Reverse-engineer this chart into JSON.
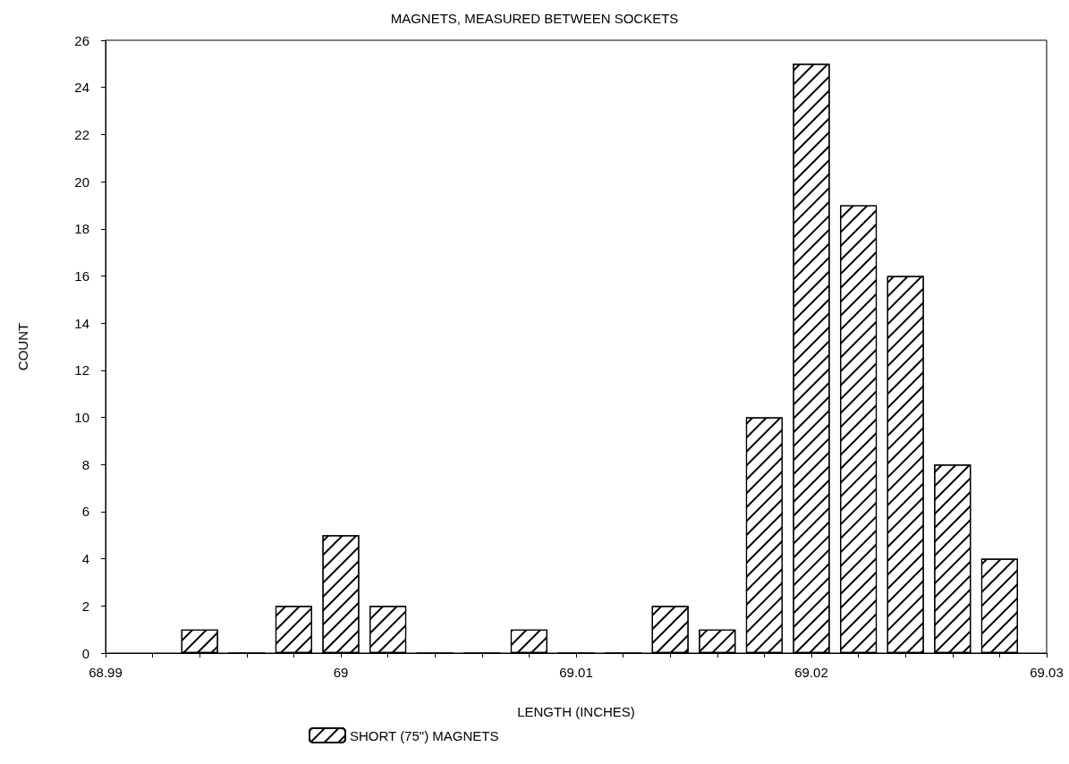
{
  "chart_data": {
    "type": "histogram",
    "title": "MAGNETS, MEASURED BETWEEN SOCKETS",
    "xlabel": "LENGTH (INCHES)",
    "ylabel": "COUNT",
    "bins": [
      68.993,
      68.995,
      68.997,
      68.999,
      69.001,
      69.003,
      69.005,
      69.007,
      69.009,
      69.011,
      69.013,
      69.015,
      69.017,
      69.019,
      69.021,
      69.023,
      69.025,
      69.027,
      69.029
    ],
    "series": [
      {
        "name": "SHORT (75\") MAGNETS",
        "color": "#000000",
        "values": [
          1,
          0,
          2,
          5,
          2,
          0,
          0,
          1,
          0,
          0,
          2,
          1,
          10,
          25,
          19,
          16,
          8,
          4
        ]
      }
    ],
    "xlim": [
      68.99,
      69.03
    ],
    "xticks": [
      68.99,
      {
        "value": 68.992,
        "label": null
      },
      {
        "value": 68.994,
        "label": null
      },
      {
        "value": 68.996,
        "label": null
      },
      {
        "value": 68.998,
        "label": null
      },
      69,
      {
        "value": 69.002,
        "label": null
      },
      {
        "value": 69.004,
        "label": null
      },
      {
        "value": 69.006,
        "label": null
      },
      {
        "value": 69.008,
        "label": null
      },
      69.01,
      {
        "value": 69.012,
        "label": null
      },
      {
        "value": 69.014,
        "label": null
      },
      {
        "value": 69.016,
        "label": null
      },
      {
        "value": 69.018,
        "label": null
      },
      69.02,
      {
        "value": 69.022,
        "label": null
      },
      {
        "value": 69.024,
        "label": null
      },
      {
        "value": 69.026,
        "label": null
      },
      {
        "value": 69.028,
        "label": null
      },
      69.03
    ],
    "ylim": [
      0,
      26
    ],
    "yticks": [
      0,
      2,
      4,
      6,
      8,
      10,
      12,
      14,
      16,
      18,
      20,
      22,
      24,
      26
    ],
    "grid": false,
    "legend": "bottom"
  }
}
